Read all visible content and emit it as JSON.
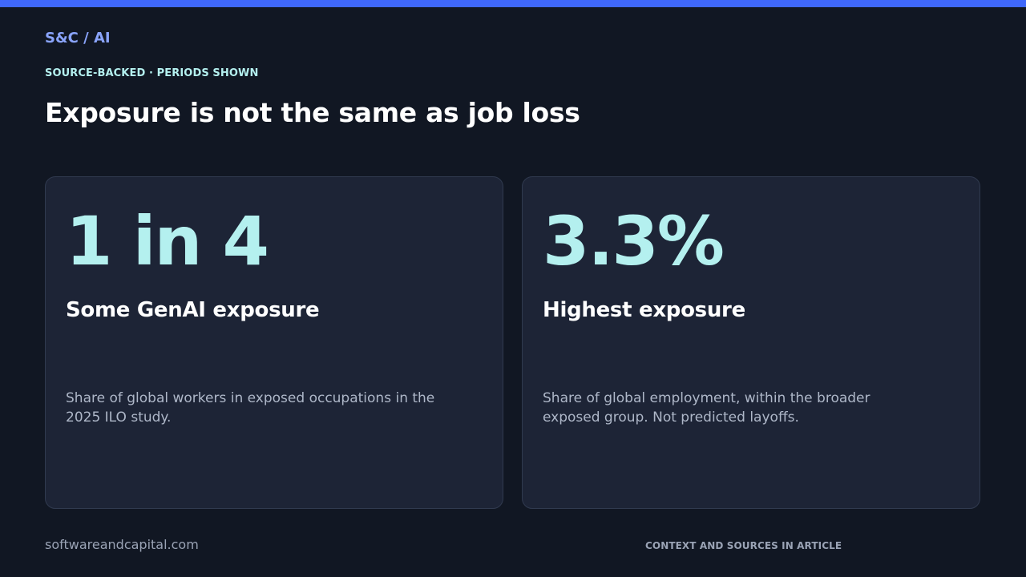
{
  "brand": "S&C / AI",
  "eyebrow": "SOURCE-BACKED · PERIODS SHOWN",
  "title": "Exposure is not the same as job loss",
  "cards": [
    {
      "stat": "1 in 4",
      "title": "Some GenAI exposure",
      "description": "Share of global workers in exposed occupations in the 2025 ILO study."
    },
    {
      "stat": "3.3%",
      "title": "Highest exposure",
      "description": "Share of global employment, within the broader exposed group. Not predicted layoffs."
    }
  ],
  "footer": {
    "site": "softwareandcapital.com",
    "note": "CONTEXT AND SOURCES IN ARTICLE"
  },
  "colors": {
    "accent_bar": "#3f68fb",
    "brand": "#8aa4fb",
    "stat": "#b4f0ef",
    "background": "#111723",
    "card": "#1d2436"
  }
}
